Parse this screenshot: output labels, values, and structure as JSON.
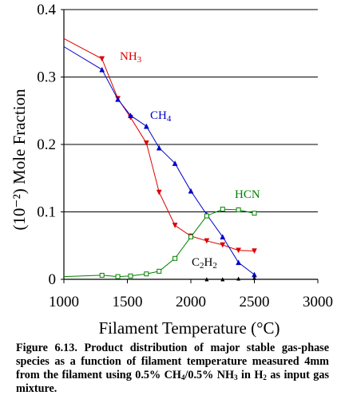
{
  "chart_data": {
    "type": "line",
    "xlabel": "Filament Temperature (°C)",
    "ylabel": "(10⁻²) Mole Fraction",
    "xlim": [
      1000,
      3000
    ],
    "ylim": [
      0,
      0.4
    ],
    "xticks": [
      "1000",
      "1500",
      "2000",
      "2500",
      "3000"
    ],
    "yticks": [
      "0",
      "0.1",
      "0.2",
      "0.3",
      "0.4"
    ],
    "grid": "horizontal",
    "series": [
      {
        "name": "NH3",
        "label": "NH",
        "label_sub": "3",
        "color": "#dd0000",
        "marker": "triangle-down",
        "x": [
          1000,
          1300,
          1425,
          1525,
          1650,
          1750,
          1875,
          2000,
          2125,
          2250,
          2375,
          2500
        ],
        "y": [
          0.357,
          0.327,
          0.268,
          0.24,
          0.202,
          0.129,
          0.08,
          0.064,
          0.057,
          0.051,
          0.043,
          0.042
        ]
      },
      {
        "name": "CH4",
        "label": "CH",
        "label_sub": "4",
        "color": "#0000cc",
        "marker": "triangle-up",
        "x": [
          1000,
          1300,
          1425,
          1525,
          1650,
          1750,
          1875,
          2000,
          2125,
          2250,
          2375,
          2500
        ],
        "y": [
          0.345,
          0.311,
          0.267,
          0.243,
          0.227,
          0.195,
          0.172,
          0.131,
          0.096,
          0.063,
          0.025,
          0.007
        ]
      },
      {
        "name": "HCN",
        "label": "HCN",
        "label_sub": "",
        "color": "#008000",
        "marker": "square",
        "x": [
          1000,
          1300,
          1425,
          1525,
          1650,
          1750,
          1875,
          2000,
          2125,
          2250,
          2375,
          2500
        ],
        "y": [
          0.004,
          0.006,
          0.004,
          0.005,
          0.008,
          0.012,
          0.031,
          0.063,
          0.094,
          0.104,
          0.103,
          0.098
        ]
      },
      {
        "name": "C2H2",
        "label": "C",
        "label_mid": "2",
        "label_tail": "H",
        "label_sub": "2",
        "color": "#000000",
        "marker": "triangle-up-small",
        "x": [
          2125,
          2250,
          2375,
          2500
        ],
        "y": [
          0.0,
          0.0,
          0.001,
          0.002
        ]
      }
    ]
  },
  "caption": {
    "lead": "Figure 6.13. Product distribution of major stable gas-phase species as a function of filament temperature measured 4mm from the filament using 0.5% CH",
    "sub1": "4",
    "mid": "/0.5% NH",
    "sub2": "3",
    "mid2": " in H",
    "sub3": "2",
    "tail": " as input gas mixture."
  }
}
